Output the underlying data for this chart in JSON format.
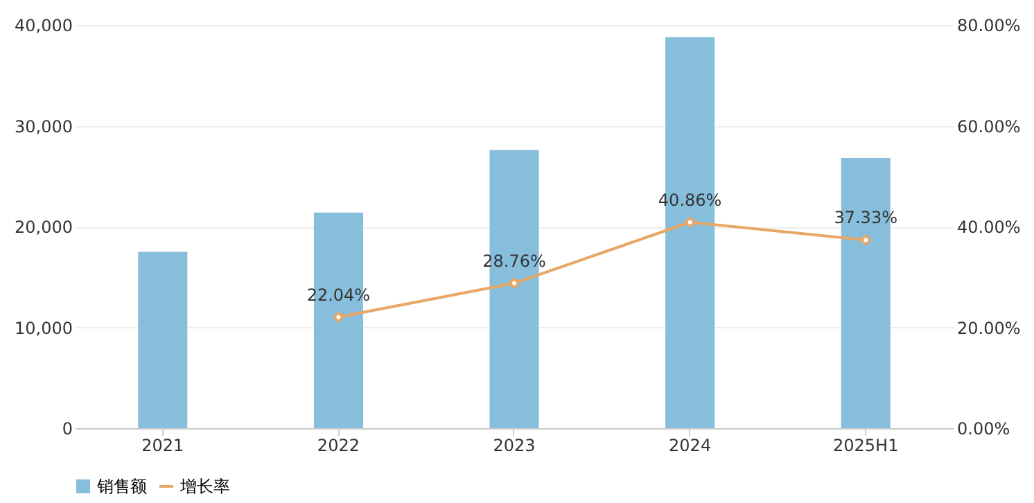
{
  "chart_data": {
    "type": "bar",
    "categories": [
      "2021",
      "2022",
      "2023",
      "2024",
      "2025H1"
    ],
    "series": [
      {
        "name": "销售额",
        "color": "#86bedb",
        "values": [
          17500,
          21400,
          27600,
          38800,
          26800
        ]
      },
      {
        "name": "增长率",
        "type": "line",
        "axis": "y2",
        "color": "#e8a765",
        "values": [
          null,
          22.04,
          28.76,
          40.86,
          37.33
        ],
        "value_labels": [
          null,
          "22.04%",
          "28.76%",
          "40.86%",
          "37.33%"
        ]
      }
    ],
    "ylim": [
      0,
      40000
    ],
    "yticks": [
      {
        "value": 0,
        "label": "0"
      },
      {
        "value": 10000,
        "label": "10,000"
      },
      {
        "value": 20000,
        "label": "20,000"
      },
      {
        "value": 30000,
        "label": "30,000"
      },
      {
        "value": 40000,
        "label": "40,000"
      }
    ],
    "y2lim": [
      0,
      80
    ],
    "y2ticks": [
      {
        "value": 0,
        "label": "0.00%"
      },
      {
        "value": 20,
        "label": "20.00%"
      },
      {
        "value": 40,
        "label": "40.00%"
      },
      {
        "value": 60,
        "label": "60.00%"
      },
      {
        "value": 80,
        "label": "80.00%"
      }
    ],
    "grid": "y",
    "legend": "bottom",
    "marker": "circle",
    "line_style": "solid"
  }
}
